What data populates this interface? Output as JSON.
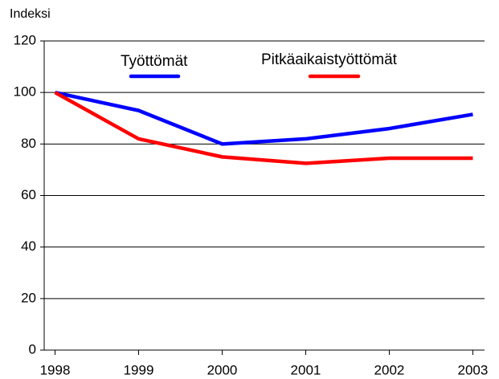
{
  "chart_data": {
    "type": "line",
    "y_label": "Indeksi",
    "x": [
      1998,
      1999,
      2000,
      2001,
      2002,
      2003
    ],
    "series": [
      {
        "name": "Työttömät",
        "color": "#0000ff",
        "values": [
          100,
          93,
          80,
          82,
          86,
          91.5
        ]
      },
      {
        "name": "Pitkäaikaistyöttömät",
        "color": "#ff0000",
        "values": [
          100,
          82,
          75,
          72.5,
          74.5,
          74.5
        ]
      }
    ],
    "xlim": [
      1997.87,
      2003.14
    ],
    "xticks": [
      1998,
      1999,
      2000,
      2001,
      2002,
      2003
    ],
    "ylim": [
      0,
      120
    ],
    "yticks": [
      0,
      20,
      40,
      60,
      80,
      100,
      120
    ],
    "grid": true,
    "legend": "top"
  }
}
